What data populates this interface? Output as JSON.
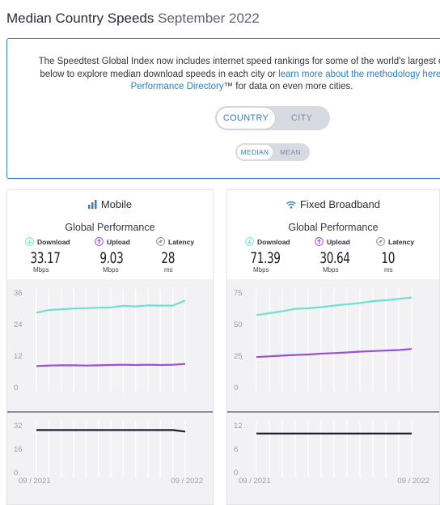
{
  "header": {
    "title": "Median Country Speeds",
    "date": "September 2022"
  },
  "info": {
    "line1": "The Speedtest Global Index now includes internet speed rankings for some of the world's largest ci",
    "line2_pre": "below to explore median download speeds in each city or ",
    "line2_link": "learn more about the methodology here.",
    "line3_link": "Performance Directory",
    "line3_post": "™ for data on even more cities."
  },
  "toggles": {
    "main": {
      "selected": "COUNTRY",
      "other": "CITY"
    },
    "sub": {
      "selected": "MEDIAN",
      "other": "MEAN"
    }
  },
  "colors": {
    "download": "#6fe0cf",
    "upload": "#9a4fd6",
    "latency": "#1d1f2b",
    "accent": "#2f7fc1"
  },
  "cards": [
    {
      "id": "mobile",
      "title": "Mobile",
      "icon": "signal-bars-icon",
      "subtitle": "Global Performance",
      "metrics": [
        {
          "label": "Download",
          "value": "33.17",
          "unit": "Mbps",
          "icon": "download-icon"
        },
        {
          "label": "Upload",
          "value": "9.03",
          "unit": "Mbps",
          "icon": "upload-icon"
        },
        {
          "label": "Latency",
          "value": "28",
          "unit": "ms",
          "icon": "latency-icon"
        }
      ]
    },
    {
      "id": "fixed",
      "title": "Fixed Broadband",
      "icon": "wifi-icon",
      "subtitle": "Global Performance",
      "metrics": [
        {
          "label": "Download",
          "value": "71.39",
          "unit": "Mbps",
          "icon": "download-icon"
        },
        {
          "label": "Upload",
          "value": "30.64",
          "unit": "Mbps",
          "icon": "upload-icon"
        },
        {
          "label": "Latency",
          "value": "10",
          "unit": "ms",
          "icon": "latency-icon"
        }
      ]
    }
  ],
  "chart_data": [
    {
      "type": "line",
      "chart": "mobile-speed",
      "x": [
        "09 / 2021",
        "10 / 2021",
        "11 / 2021",
        "12 / 2021",
        "01 / 2022",
        "02 / 2022",
        "03 / 2022",
        "04 / 2022",
        "05 / 2022",
        "06 / 2022",
        "07 / 2022",
        "08 / 2022",
        "09 / 2022"
      ],
      "x_tick_labels": [
        "09 / 2021",
        "09 / 2022"
      ],
      "y_ticks": [
        0,
        12,
        24,
        36
      ],
      "ylim": [
        0,
        36
      ],
      "series": [
        {
          "key": "download",
          "values": [
            28.5,
            29.5,
            29.8,
            30.1,
            30.2,
            30.4,
            30.5,
            31.1,
            30.9,
            31.3,
            31.2,
            31.2,
            33.17
          ]
        },
        {
          "key": "upload",
          "values": [
            8.2,
            8.4,
            8.5,
            8.5,
            8.4,
            8.5,
            8.6,
            8.7,
            8.6,
            8.7,
            8.6,
            8.7,
            9.03
          ]
        }
      ]
    },
    {
      "type": "line",
      "chart": "mobile-latency",
      "x": [
        "09 / 2021",
        "10 / 2021",
        "11 / 2021",
        "12 / 2021",
        "01 / 2022",
        "02 / 2022",
        "03 / 2022",
        "04 / 2022",
        "05 / 2022",
        "06 / 2022",
        "07 / 2022",
        "08 / 2022",
        "09 / 2022"
      ],
      "y_ticks": [
        0,
        16,
        32
      ],
      "ylim": [
        0,
        32
      ],
      "series": [
        {
          "key": "latency",
          "values": [
            29,
            29,
            29,
            29,
            29,
            29,
            29,
            29,
            29,
            29,
            29,
            29,
            28
          ]
        }
      ]
    },
    {
      "type": "line",
      "chart": "fixed-speed",
      "x": [
        "09 / 2021",
        "10 / 2021",
        "11 / 2021",
        "12 / 2021",
        "01 / 2022",
        "02 / 2022",
        "03 / 2022",
        "04 / 2022",
        "05 / 2022",
        "06 / 2022",
        "07 / 2022",
        "08 / 2022",
        "09 / 2022"
      ],
      "x_tick_labels": [
        "09 / 2021",
        "09 / 2022"
      ],
      "y_ticks": [
        0,
        25,
        50,
        75
      ],
      "ylim": [
        0,
        75
      ],
      "series": [
        {
          "key": "download",
          "values": [
            57.5,
            59,
            60.5,
            62.5,
            62.8,
            63.8,
            65,
            66,
            67,
            68.5,
            69.2,
            70.3,
            71.39
          ]
        },
        {
          "key": "upload",
          "values": [
            24.2,
            24.8,
            25.4,
            25.9,
            26.3,
            26.9,
            27.4,
            27.9,
            28.5,
            29,
            29.4,
            29.8,
            30.64
          ]
        }
      ]
    },
    {
      "type": "line",
      "chart": "fixed-latency",
      "x": [
        "09 / 2021",
        "10 / 2021",
        "11 / 2021",
        "12 / 2021",
        "01 / 2022",
        "02 / 2022",
        "03 / 2022",
        "04 / 2022",
        "05 / 2022",
        "06 / 2022",
        "07 / 2022",
        "08 / 2022",
        "09 / 2022"
      ],
      "y_ticks": [
        0,
        6,
        12
      ],
      "ylim": [
        0,
        12
      ],
      "series": [
        {
          "key": "latency",
          "values": [
            10,
            10,
            10,
            10,
            10,
            10,
            10,
            10,
            10,
            10,
            10,
            10,
            10
          ]
        }
      ]
    }
  ]
}
